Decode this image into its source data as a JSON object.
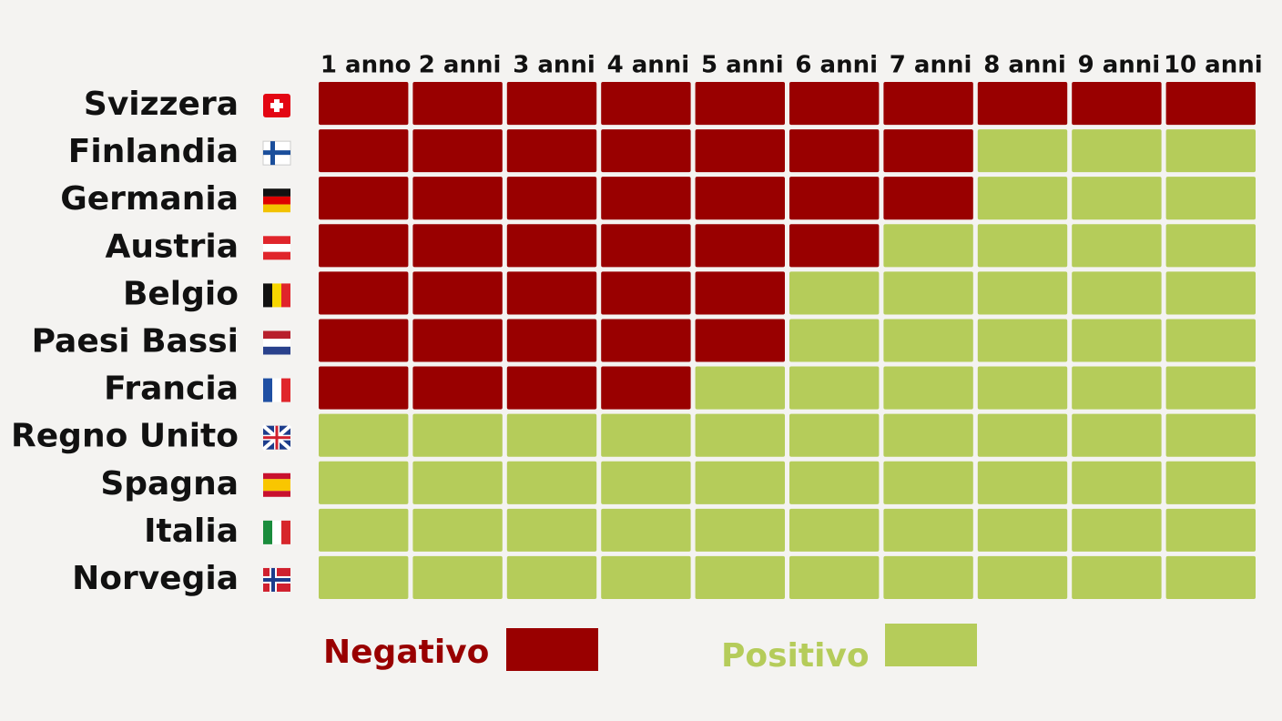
{
  "chart_data": {
    "type": "grid",
    "columns": [
      "1 anno",
      "2 anni",
      "3 anni",
      "4 anni",
      "5 anni",
      "6 anni",
      "7 anni",
      "8 anni",
      "9 anni",
      "10 anni"
    ],
    "legend": [
      {
        "name": "Negativo",
        "color": "#990000"
      },
      {
        "name": "Positivo",
        "color": "#b5cc5a"
      }
    ],
    "rows": [
      {
        "name": "Svizzera",
        "values": [
          0,
          0,
          0,
          0,
          0,
          0,
          0,
          0,
          0,
          0
        ]
      },
      {
        "name": "Finlandia",
        "values": [
          0,
          0,
          0,
          0,
          0,
          0,
          0,
          1,
          1,
          1
        ]
      },
      {
        "name": "Germania",
        "values": [
          0,
          0,
          0,
          0,
          0,
          0,
          0,
          1,
          1,
          1
        ]
      },
      {
        "name": "Austria",
        "values": [
          0,
          0,
          0,
          0,
          0,
          0,
          1,
          1,
          1,
          1
        ]
      },
      {
        "name": "Belgio",
        "values": [
          0,
          0,
          0,
          0,
          0,
          1,
          1,
          1,
          1,
          1
        ]
      },
      {
        "name": "Paesi Bassi",
        "values": [
          0,
          0,
          0,
          0,
          0,
          1,
          1,
          1,
          1,
          1
        ]
      },
      {
        "name": "Francia",
        "values": [
          0,
          0,
          0,
          0,
          1,
          1,
          1,
          1,
          1,
          1
        ]
      },
      {
        "name": "Regno Unito",
        "values": [
          1,
          1,
          1,
          1,
          1,
          1,
          1,
          1,
          1,
          1
        ]
      },
      {
        "name": "Spagna",
        "values": [
          1,
          1,
          1,
          1,
          1,
          1,
          1,
          1,
          1,
          1
        ]
      },
      {
        "name": "Italia",
        "values": [
          1,
          1,
          1,
          1,
          1,
          1,
          1,
          1,
          1,
          1
        ]
      },
      {
        "name": "Norvegia",
        "values": [
          1,
          1,
          1,
          1,
          1,
          1,
          1,
          1,
          1,
          1
        ]
      }
    ]
  }
}
